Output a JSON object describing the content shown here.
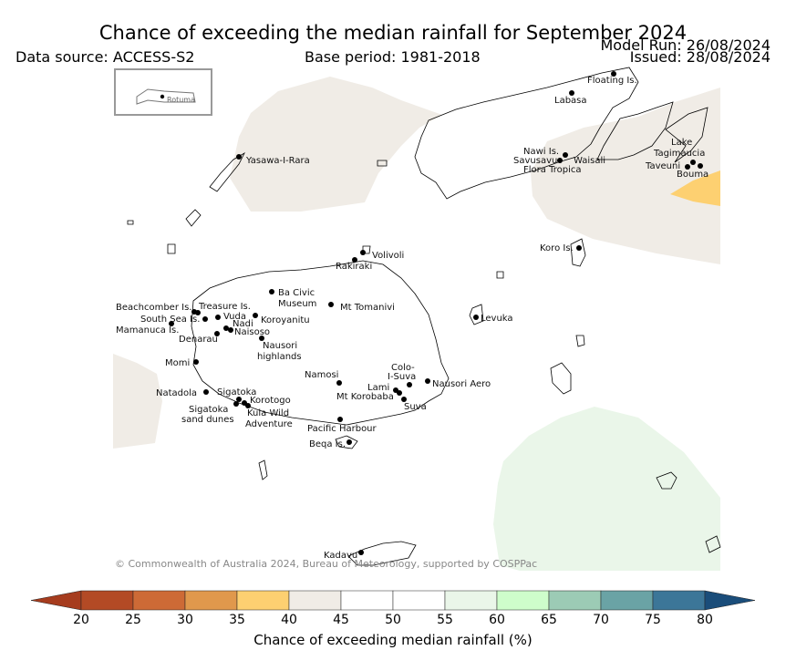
{
  "header": {
    "title": "Chance of exceeding the median rainfall for September 2024",
    "data_source": "Data source: ACCESS-S2",
    "base_period": "Base period: 1981-2018",
    "model_run": "Model Run: 26/08/2024",
    "issued": "Issued: 28/08/2024"
  },
  "inset": {
    "label": "Rotuma"
  },
  "map": {
    "copyright": "© Commonwealth of Australia 2024, Bureau of Meteorology, supported by COSPPac",
    "places": [
      {
        "name": "Floating Is."
      },
      {
        "name": "Labasa"
      },
      {
        "name": "Yasawa-I-Rara"
      },
      {
        "name": "Nawi Is."
      },
      {
        "name": "Savusavu"
      },
      {
        "name": "Waisali"
      },
      {
        "name": "Flora Tropica"
      },
      {
        "name": "Lake"
      },
      {
        "name": "Tagimaucia"
      },
      {
        "name": "Taveuni"
      },
      {
        "name": "Bouma"
      },
      {
        "name": "Koro Is."
      },
      {
        "name": "Volivoli"
      },
      {
        "name": "Rakiraki"
      },
      {
        "name": "Ba Civic"
      },
      {
        "name": "Museum"
      },
      {
        "name": "Mt Tomanivi"
      },
      {
        "name": "Beachcomber Is."
      },
      {
        "name": "Treasure Is."
      },
      {
        "name": "South Sea Is."
      },
      {
        "name": "Vuda"
      },
      {
        "name": "Koroyanitu"
      },
      {
        "name": "Mamanuca Is."
      },
      {
        "name": "Nadi"
      },
      {
        "name": "Naisoso"
      },
      {
        "name": "Denarau"
      },
      {
        "name": "Levuka"
      },
      {
        "name": "Nausori"
      },
      {
        "name": "highlands"
      },
      {
        "name": "Momi"
      },
      {
        "name": "Colo-"
      },
      {
        "name": "I-Suva"
      },
      {
        "name": "Namosi"
      },
      {
        "name": "Lami"
      },
      {
        "name": "Nausori Aero"
      },
      {
        "name": "Natadola"
      },
      {
        "name": "Sigatoka"
      },
      {
        "name": "Mt Korobaba"
      },
      {
        "name": "Korotogo"
      },
      {
        "name": "Suva"
      },
      {
        "name": "Sigatoka"
      },
      {
        "name": "sand dunes"
      },
      {
        "name": "Kula Wild"
      },
      {
        "name": "Adventure"
      },
      {
        "name": "Pacific Harbour"
      },
      {
        "name": "Beqa Is."
      },
      {
        "name": "Kadavu"
      }
    ]
  },
  "colorbar": {
    "title": "Chance of exceeding median rainfall (%)",
    "ticks": [
      "20",
      "25",
      "30",
      "35",
      "40",
      "45",
      "50",
      "55",
      "60",
      "65",
      "70",
      "75",
      "80"
    ],
    "colors": [
      "#a63c1e",
      "#b34a25",
      "#cd6a36",
      "#e0984c",
      "#fdd071",
      "#f0ece6",
      "#ffffff",
      "#ffffff",
      "#eaf6e9",
      "#cefdcb",
      "#9ccbb5",
      "#6aa3a5",
      "#3c7698",
      "#1a4d7a"
    ]
  },
  "regions": [
    {
      "category": "40-45",
      "color": "#f0ece6"
    },
    {
      "category": "35-40",
      "color": "#fdd071"
    },
    {
      "category": "55-60",
      "color": "#eaf6e9"
    }
  ]
}
